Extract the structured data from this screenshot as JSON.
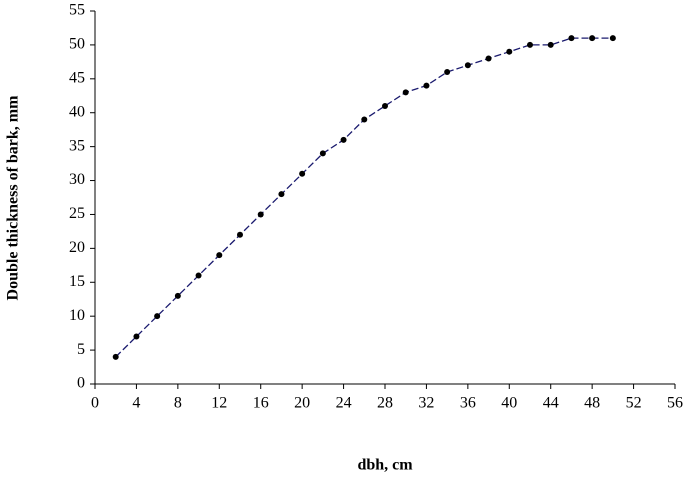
{
  "chart_data": {
    "type": "line",
    "xlabel": "dbh, cm",
    "ylabel": "Double thickness of bark, mm",
    "x": [
      2,
      4,
      6,
      8,
      10,
      12,
      14,
      16,
      18,
      20,
      22,
      24,
      26,
      28,
      30,
      32,
      34,
      36,
      38,
      40,
      42,
      44,
      46,
      48,
      50
    ],
    "values": [
      4,
      7,
      10,
      13,
      16,
      19,
      22,
      25,
      28,
      31,
      34,
      36,
      39,
      41,
      43,
      44,
      46,
      47,
      48,
      49,
      50,
      50,
      51,
      51,
      51
    ],
    "color": "#1a1a6e",
    "marker_color": "#000000",
    "xlim": [
      0,
      56
    ],
    "xticks": [
      0,
      4,
      8,
      12,
      16,
      20,
      24,
      28,
      32,
      36,
      40,
      44,
      48,
      52,
      56
    ],
    "ylim": [
      0,
      55
    ],
    "yticks": [
      0,
      5,
      10,
      15,
      20,
      25,
      30,
      35,
      40,
      45,
      50,
      55
    ],
    "grid": false
  }
}
